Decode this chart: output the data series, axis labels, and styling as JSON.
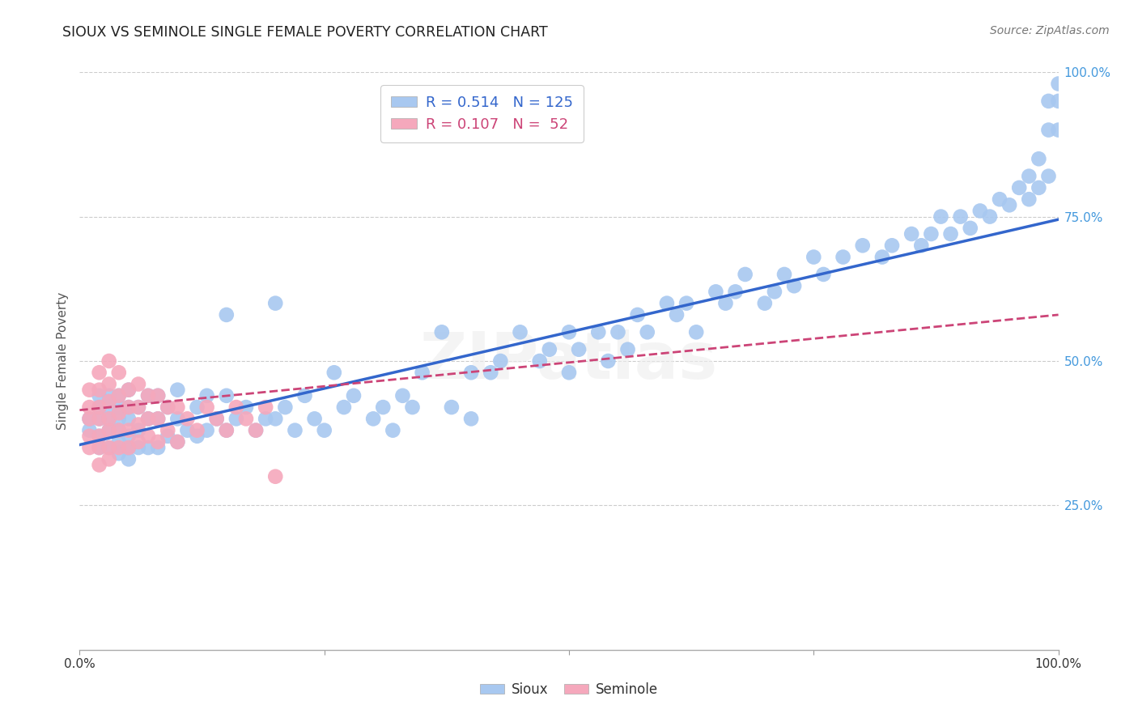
{
  "title": "SIOUX VS SEMINOLE SINGLE FEMALE POVERTY CORRELATION CHART",
  "source": "Source: ZipAtlas.com",
  "ylabel": "Single Female Poverty",
  "sioux_R": 0.514,
  "sioux_N": 125,
  "seminole_R": 0.107,
  "seminole_N": 52,
  "sioux_color": "#a8c8f0",
  "seminole_color": "#f5a8bc",
  "trend_sioux_color": "#3366cc",
  "trend_seminole_color": "#cc4477",
  "right_tick_color": "#4499dd",
  "sioux_x": [
    0.01,
    0.01,
    0.02,
    0.02,
    0.02,
    0.02,
    0.02,
    0.03,
    0.03,
    0.03,
    0.03,
    0.03,
    0.04,
    0.04,
    0.04,
    0.04,
    0.04,
    0.04,
    0.05,
    0.05,
    0.05,
    0.05,
    0.05,
    0.05,
    0.06,
    0.06,
    0.06,
    0.07,
    0.07,
    0.07,
    0.08,
    0.08,
    0.08,
    0.09,
    0.09,
    0.1,
    0.1,
    0.1,
    0.11,
    0.12,
    0.12,
    0.13,
    0.13,
    0.14,
    0.15,
    0.15,
    0.16,
    0.17,
    0.18,
    0.19,
    0.2,
    0.21,
    0.22,
    0.23,
    0.24,
    0.25,
    0.26,
    0.27,
    0.28,
    0.3,
    0.31,
    0.32,
    0.33,
    0.34,
    0.35,
    0.37,
    0.38,
    0.4,
    0.4,
    0.42,
    0.43,
    0.45,
    0.47,
    0.48,
    0.5,
    0.5,
    0.51,
    0.53,
    0.54,
    0.55,
    0.56,
    0.57,
    0.58,
    0.6,
    0.61,
    0.62,
    0.63,
    0.65,
    0.66,
    0.67,
    0.68,
    0.7,
    0.71,
    0.72,
    0.73,
    0.75,
    0.76,
    0.78,
    0.8,
    0.82,
    0.83,
    0.85,
    0.86,
    0.87,
    0.88,
    0.89,
    0.9,
    0.91,
    0.92,
    0.93,
    0.94,
    0.95,
    0.96,
    0.97,
    0.97,
    0.98,
    0.98,
    0.99,
    0.99,
    0.99,
    1.0,
    1.0,
    1.0,
    0.15,
    0.2
  ],
  "sioux_y": [
    0.38,
    0.4,
    0.35,
    0.37,
    0.4,
    0.42,
    0.44,
    0.35,
    0.38,
    0.4,
    0.42,
    0.44,
    0.34,
    0.36,
    0.38,
    0.4,
    0.42,
    0.44,
    0.33,
    0.35,
    0.37,
    0.4,
    0.42,
    0.45,
    0.35,
    0.38,
    0.42,
    0.35,
    0.4,
    0.44,
    0.35,
    0.4,
    0.44,
    0.37,
    0.42,
    0.36,
    0.4,
    0.45,
    0.38,
    0.37,
    0.42,
    0.38,
    0.44,
    0.4,
    0.38,
    0.44,
    0.4,
    0.42,
    0.38,
    0.4,
    0.4,
    0.42,
    0.38,
    0.44,
    0.4,
    0.38,
    0.48,
    0.42,
    0.44,
    0.4,
    0.42,
    0.38,
    0.44,
    0.42,
    0.48,
    0.55,
    0.42,
    0.4,
    0.48,
    0.48,
    0.5,
    0.55,
    0.5,
    0.52,
    0.48,
    0.55,
    0.52,
    0.55,
    0.5,
    0.55,
    0.52,
    0.58,
    0.55,
    0.6,
    0.58,
    0.6,
    0.55,
    0.62,
    0.6,
    0.62,
    0.65,
    0.6,
    0.62,
    0.65,
    0.63,
    0.68,
    0.65,
    0.68,
    0.7,
    0.68,
    0.7,
    0.72,
    0.7,
    0.72,
    0.75,
    0.72,
    0.75,
    0.73,
    0.76,
    0.75,
    0.78,
    0.77,
    0.8,
    0.78,
    0.82,
    0.8,
    0.85,
    0.82,
    0.9,
    0.95,
    0.9,
    0.95,
    0.98,
    0.58,
    0.6
  ],
  "seminole_x": [
    0.01,
    0.01,
    0.01,
    0.01,
    0.01,
    0.02,
    0.02,
    0.02,
    0.02,
    0.02,
    0.02,
    0.02,
    0.03,
    0.03,
    0.03,
    0.03,
    0.03,
    0.03,
    0.03,
    0.04,
    0.04,
    0.04,
    0.04,
    0.04,
    0.05,
    0.05,
    0.05,
    0.05,
    0.06,
    0.06,
    0.06,
    0.06,
    0.07,
    0.07,
    0.07,
    0.08,
    0.08,
    0.08,
    0.09,
    0.09,
    0.1,
    0.1,
    0.11,
    0.12,
    0.13,
    0.14,
    0.15,
    0.16,
    0.17,
    0.18,
    0.19,
    0.2
  ],
  "seminole_y": [
    0.35,
    0.37,
    0.4,
    0.42,
    0.45,
    0.32,
    0.35,
    0.37,
    0.4,
    0.42,
    0.45,
    0.48,
    0.33,
    0.35,
    0.38,
    0.4,
    0.43,
    0.46,
    0.5,
    0.35,
    0.38,
    0.41,
    0.44,
    0.48,
    0.35,
    0.38,
    0.42,
    0.45,
    0.36,
    0.39,
    0.42,
    0.46,
    0.37,
    0.4,
    0.44,
    0.36,
    0.4,
    0.44,
    0.38,
    0.42,
    0.36,
    0.42,
    0.4,
    0.38,
    0.42,
    0.4,
    0.38,
    0.42,
    0.4,
    0.38,
    0.42,
    0.3
  ],
  "sioux_trend": [
    0.0,
    1.0,
    0.355,
    0.745
  ],
  "seminole_trend": [
    0.0,
    1.0,
    0.415,
    0.58
  ],
  "x_tick_positions": [
    0.0,
    0.25,
    0.5,
    0.75,
    1.0
  ],
  "x_tick_labels": [
    "0.0%",
    "",
    "",
    "",
    "100.0%"
  ],
  "y_tick_positions": [
    0.25,
    0.5,
    0.75,
    1.0
  ],
  "y_tick_labels": [
    "25.0%",
    "50.0%",
    "75.0%",
    "100.0%"
  ]
}
